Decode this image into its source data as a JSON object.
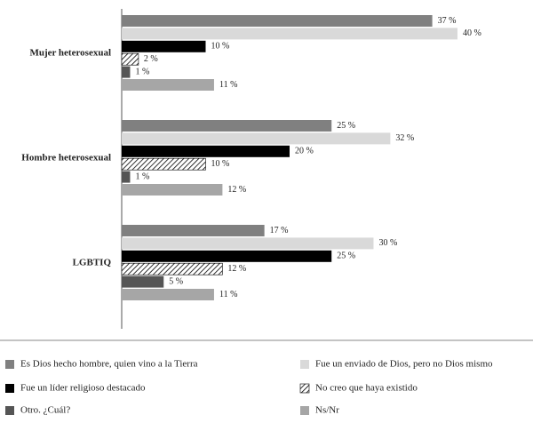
{
  "chart_data": {
    "type": "bar",
    "orientation": "horizontal",
    "categories": [
      "Mujer heterosexual",
      "Hombre heterosexual",
      "LGBTIQ"
    ],
    "xlim": [
      0,
      49
    ],
    "series": [
      {
        "name": "Es Dios hecho hombre, quien vino a la Tierra",
        "color": "#808080",
        "values": [
          37,
          25,
          17
        ],
        "value_labels": [
          "37 %",
          "25 %",
          "17 %"
        ]
      },
      {
        "name": "Fue un enviado de Dios, pero no Dios mismo",
        "color": "#d9d9d9",
        "values": [
          40,
          32,
          30
        ],
        "value_labels": [
          "40 %",
          "32 %",
          "30 %"
        ]
      },
      {
        "name": "Fue un líder religioso destacado",
        "color": "#000000",
        "values": [
          10,
          20,
          25
        ],
        "value_labels": [
          "10 %",
          "20 %",
          "25 %"
        ]
      },
      {
        "name": "No creo que haya existido",
        "color": "#000000",
        "hatch": true,
        "values": [
          2,
          10,
          12
        ],
        "value_labels": [
          "2 %",
          "10 %",
          "12 %"
        ]
      },
      {
        "name": "Otro. ¿Cuál?",
        "color": "#555555",
        "values": [
          1,
          1,
          5
        ],
        "value_labels": [
          "1 %",
          "1 %",
          "5 %"
        ]
      },
      {
        "name": "Ns/Nr",
        "color": "#a6a6a6",
        "values": [
          11,
          12,
          11
        ],
        "value_labels": [
          "11 %",
          "12 %",
          "11 %"
        ]
      }
    ],
    "legend": "bottom"
  }
}
